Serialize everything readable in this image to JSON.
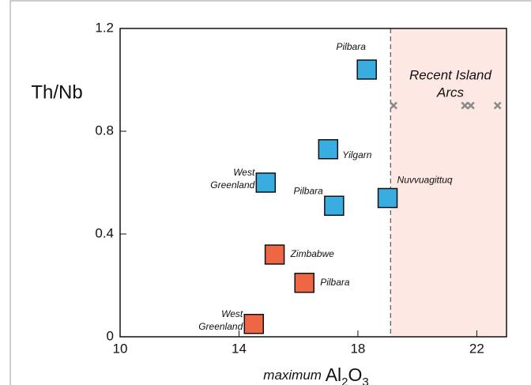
{
  "chart_data": {
    "type": "scatter",
    "y_label": "Th/Nb",
    "x_label": {
      "prefix": "maximum",
      "formula": "Al2O3"
    },
    "xlim": [
      10,
      23
    ],
    "xticks": [
      10,
      14,
      18,
      22
    ],
    "ylim": [
      0,
      1.2
    ],
    "yticks": [
      0,
      0.4,
      0.8,
      1.2
    ],
    "region": {
      "x0": 19.1,
      "color": "#fde8e3",
      "label": [
        "Recent Island",
        "Arcs"
      ]
    },
    "series": [
      {
        "color": "#3aade0",
        "marker": "square",
        "x": [
          18.3,
          17.0,
          14.9,
          17.2,
          19.0
        ],
        "values": [
          1.04,
          0.73,
          0.6,
          0.51,
          0.54
        ],
        "labels": [
          "Pilbara",
          "Yilgarn",
          "West\nGreenland",
          "Pilbara",
          "Nuvvuagittuq"
        ]
      },
      {
        "color": "#ef6644",
        "marker": "square",
        "x": [
          15.2,
          16.2,
          14.5
        ],
        "values": [
          0.32,
          0.21,
          0.05
        ],
        "labels": [
          "Zimbabwe",
          "Pilbara",
          "West\nGreenland"
        ]
      },
      {
        "color": "#8a8a8a",
        "marker": "x",
        "x": [
          19.2,
          21.6,
          21.8,
          22.7
        ],
        "values": [
          0.9,
          0.9,
          0.9,
          0.9
        ]
      }
    ]
  }
}
